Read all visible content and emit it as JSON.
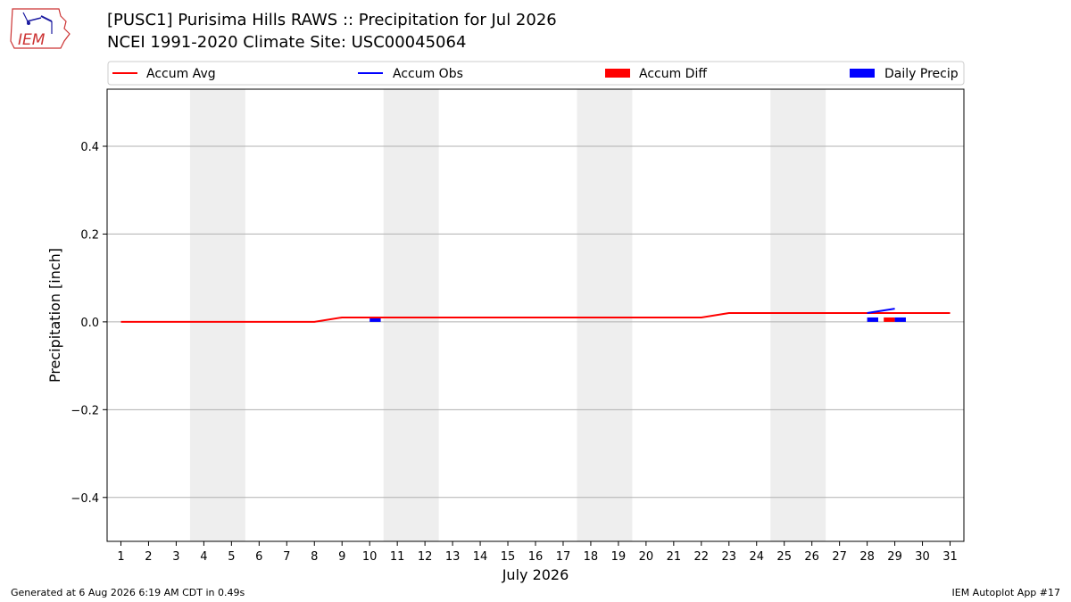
{
  "logo": {
    "text": "IEM"
  },
  "header": {
    "title": "[PUSC1] Purisima Hills RAWS :: Precipitation for Jul 2026",
    "subtitle": "NCEI 1991-2020 Climate Site: USC00045064"
  },
  "footer": {
    "left": "Generated at 6 Aug 2026 6:19 AM CDT in 0.49s",
    "right": "IEM Autoplot App #17"
  },
  "chart_data": {
    "type": "line",
    "xlabel": "July 2026",
    "ylabel": "Precipitation [inch]",
    "xlim": [
      0.5,
      31.5
    ],
    "ylim": [
      -0.5,
      0.53
    ],
    "yticks": [
      -0.4,
      -0.2,
      0.0,
      0.2,
      0.4
    ],
    "ytick_labels": [
      "−0.4",
      "−0.2",
      "0.0",
      "0.2",
      "0.4"
    ],
    "xticks": [
      1,
      2,
      3,
      4,
      5,
      6,
      7,
      8,
      9,
      10,
      11,
      12,
      13,
      14,
      15,
      16,
      17,
      18,
      19,
      20,
      21,
      22,
      23,
      24,
      25,
      26,
      27,
      28,
      29,
      30,
      31
    ],
    "grid": "horizontal",
    "weekend_shading": [
      [
        4,
        5
      ],
      [
        11,
        12
      ],
      [
        18,
        19
      ],
      [
        25,
        26
      ]
    ],
    "legend_position": "top",
    "legend": [
      {
        "label": "Accum Avg",
        "kind": "line",
        "color": "#ff0000"
      },
      {
        "label": "Accum Obs",
        "kind": "line",
        "color": "#0000ff"
      },
      {
        "label": "Accum Diff",
        "kind": "bar",
        "color": "#ff0000"
      },
      {
        "label": "Daily Precip",
        "kind": "bar",
        "color": "#0000ff"
      }
    ],
    "series": [
      {
        "name": "Accum Avg",
        "type": "line",
        "color": "#ff0000",
        "x": [
          1,
          2,
          3,
          4,
          5,
          6,
          7,
          8,
          9,
          10,
          11,
          12,
          13,
          14,
          15,
          16,
          17,
          18,
          19,
          20,
          21,
          22,
          23,
          24,
          25,
          26,
          27,
          28,
          29,
          30,
          31
        ],
        "values": [
          0,
          0,
          0,
          0,
          0,
          0,
          0,
          0,
          0.01,
          0.01,
          0.01,
          0.01,
          0.01,
          0.01,
          0.01,
          0.01,
          0.01,
          0.01,
          0.01,
          0.01,
          0.01,
          0.01,
          0.02,
          0.02,
          0.02,
          0.02,
          0.02,
          0.02,
          0.02,
          0.02,
          0.02
        ]
      },
      {
        "name": "Accum Obs",
        "type": "line",
        "color": "#0000ff",
        "x": [
          28,
          29
        ],
        "values": [
          0.02,
          0.03
        ]
      },
      {
        "name": "Accum Diff",
        "type": "bar",
        "color": "#ff0000",
        "x": [
          28.8
        ],
        "values": [
          0.01
        ]
      },
      {
        "name": "Daily Precip",
        "type": "bar",
        "color": "#0000ff",
        "x": [
          10.2,
          28.2,
          29.2
        ],
        "values": [
          0.01,
          0.01,
          0.01
        ]
      }
    ]
  }
}
